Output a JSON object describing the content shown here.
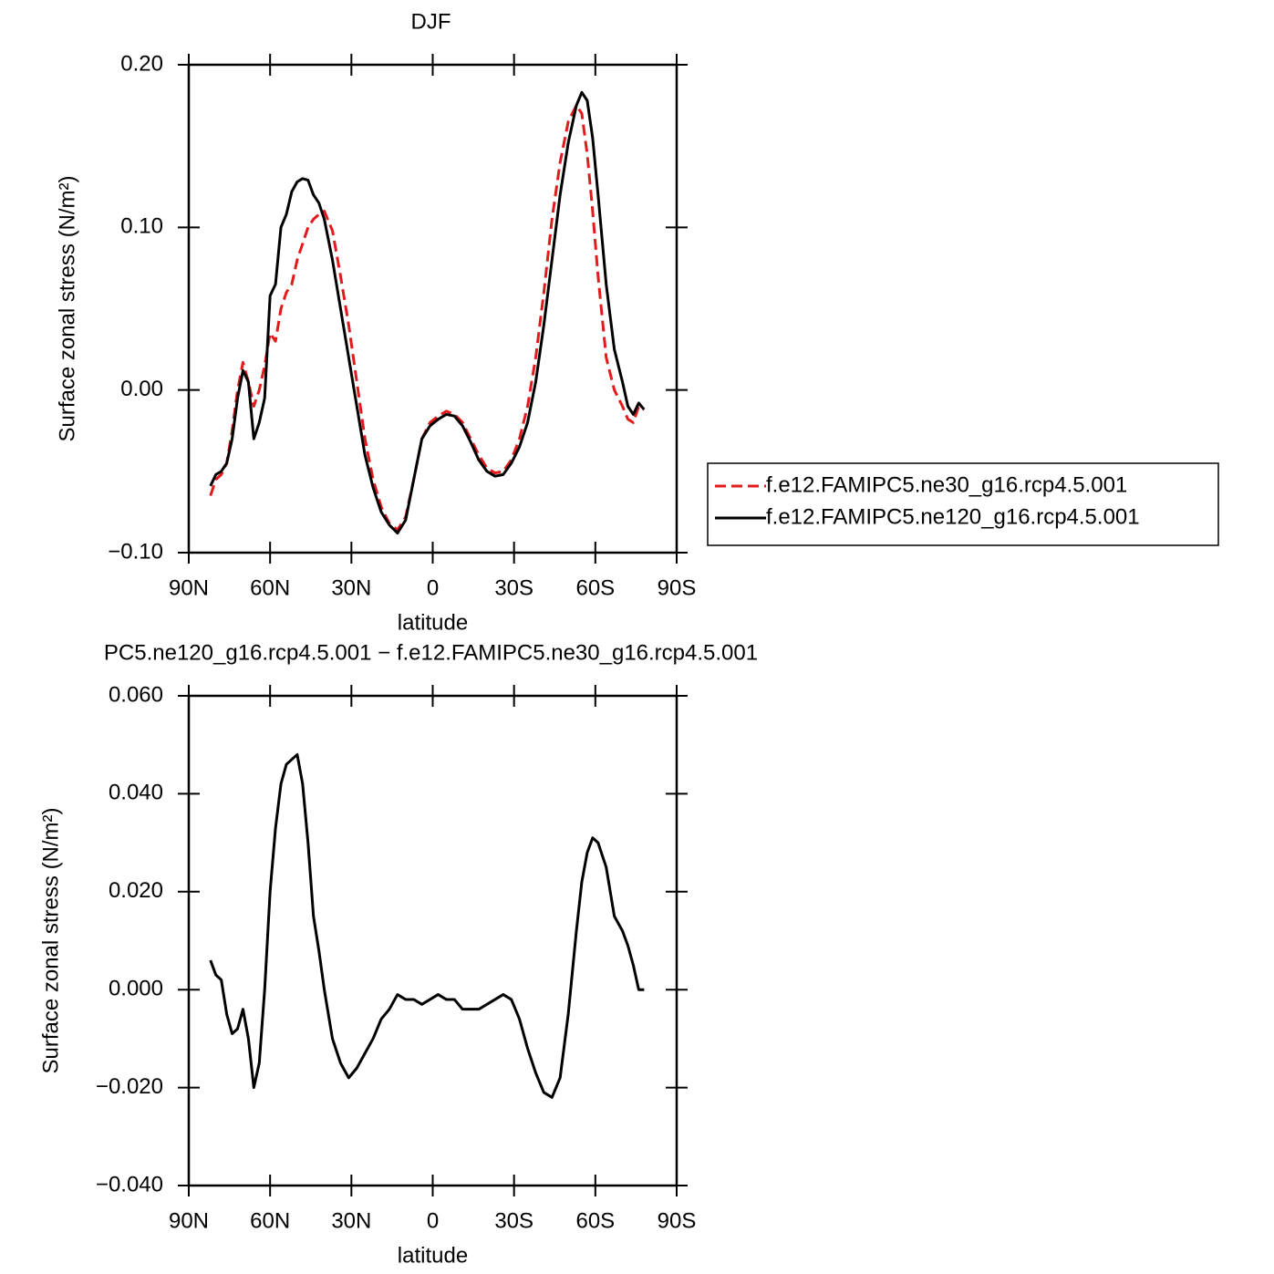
{
  "chart_data": [
    {
      "type": "line",
      "title": "DJF",
      "x_label": "latitude",
      "y_label": "Surface zonal stress (N/m²)",
      "x": [
        82,
        80,
        78,
        76,
        74,
        72,
        70,
        68,
        66,
        64,
        62,
        60,
        58,
        56,
        54,
        52,
        50,
        48,
        46,
        44,
        42,
        40,
        37,
        34,
        31,
        28,
        25,
        22,
        19,
        16,
        13,
        10,
        7,
        4,
        1,
        -2,
        -5,
        -8,
        -11,
        -14,
        -17,
        -20,
        -23,
        -26,
        -29,
        -32,
        -35,
        -38,
        -41,
        -44,
        -47,
        -50,
        -53,
        -55,
        -57,
        -59,
        -61,
        -64,
        -67,
        -70,
        -72,
        -74,
        -76,
        -78
      ],
      "xlim": [
        90,
        -90
      ],
      "xticks": [
        {
          "value": 90,
          "label": "90N"
        },
        {
          "value": 60,
          "label": "60N"
        },
        {
          "value": 30,
          "label": "30N"
        },
        0,
        {
          "value": -30,
          "label": "30S"
        },
        {
          "value": -60,
          "label": "60S"
        },
        {
          "value": -90,
          "label": "90S"
        }
      ],
      "ylim": [
        -0.1,
        0.2
      ],
      "yticks": [
        {
          "value": -0.1,
          "label": "−0.10"
        },
        {
          "value": 0,
          "label": "0.00"
        },
        {
          "value": 0.1,
          "label": "0.10"
        },
        {
          "value": 0.2,
          "label": "0.20"
        }
      ],
      "legend_position": "outside right",
      "series": [
        {
          "name": "f.e12.FAMIPC5.ne30_g16.rcp4.5.001",
          "color": "#e31a1c",
          "dash": true,
          "values": [
            -0.065,
            -0.055,
            -0.052,
            -0.045,
            -0.025,
            0.0,
            0.017,
            0.005,
            -0.01,
            0.0,
            0.015,
            0.035,
            0.03,
            0.05,
            0.06,
            0.065,
            0.08,
            0.09,
            0.1,
            0.105,
            0.108,
            0.11,
            0.098,
            0.07,
            0.04,
            0.005,
            -0.03,
            -0.055,
            -0.072,
            -0.082,
            -0.086,
            -0.078,
            -0.055,
            -0.03,
            -0.02,
            -0.016,
            -0.013,
            -0.015,
            -0.02,
            -0.03,
            -0.04,
            -0.048,
            -0.051,
            -0.05,
            -0.043,
            -0.03,
            -0.01,
            0.02,
            0.06,
            0.105,
            0.14,
            0.165,
            0.175,
            0.17,
            0.145,
            0.11,
            0.07,
            0.02,
            0.0,
            -0.01,
            -0.018,
            -0.02,
            -0.01,
            -0.012
          ]
        },
        {
          "name": "f.e12.FAMIPC5.ne120_g16.rcp4.5.001",
          "color": "#000000",
          "dash": false,
          "values": [
            -0.059,
            -0.052,
            -0.05,
            -0.045,
            -0.03,
            -0.005,
            0.012,
            0.005,
            -0.03,
            -0.02,
            -0.005,
            0.058,
            0.065,
            0.1,
            0.108,
            0.122,
            0.128,
            0.13,
            0.129,
            0.12,
            0.115,
            0.105,
            0.08,
            0.05,
            0.02,
            -0.01,
            -0.04,
            -0.06,
            -0.075,
            -0.083,
            -0.088,
            -0.08,
            -0.055,
            -0.03,
            -0.022,
            -0.018,
            -0.015,
            -0.016,
            -0.022,
            -0.032,
            -0.043,
            -0.05,
            -0.053,
            -0.052,
            -0.045,
            -0.035,
            -0.02,
            0.005,
            0.04,
            0.08,
            0.12,
            0.152,
            0.175,
            0.183,
            0.178,
            0.155,
            0.12,
            0.065,
            0.025,
            0.005,
            -0.01,
            -0.015,
            -0.008,
            -0.012
          ]
        }
      ]
    },
    {
      "type": "line",
      "title": "PC5.ne120_g16.rcp4.5.001 − f.e12.FAMIPC5.ne30_g16.rcp4.5.001",
      "x_label": "latitude",
      "y_label": "Surface zonal stress (N/m²)",
      "x": [
        82,
        80,
        78,
        76,
        74,
        72,
        70,
        68,
        66,
        64,
        62,
        60,
        58,
        56,
        54,
        52,
        50,
        48,
        46,
        44,
        42,
        40,
        37,
        34,
        31,
        28,
        25,
        22,
        19,
        16,
        13,
        10,
        7,
        4,
        1,
        -2,
        -5,
        -8,
        -11,
        -14,
        -17,
        -20,
        -23,
        -26,
        -29,
        -32,
        -35,
        -38,
        -41,
        -44,
        -47,
        -50,
        -53,
        -55,
        -57,
        -59,
        -61,
        -64,
        -67,
        -70,
        -72,
        -74,
        -76,
        -78
      ],
      "xlim": [
        90,
        -90
      ],
      "xticks": [
        {
          "value": 90,
          "label": "90N"
        },
        {
          "value": 60,
          "label": "60N"
        },
        {
          "value": 30,
          "label": "30N"
        },
        0,
        {
          "value": -30,
          "label": "30S"
        },
        {
          "value": -60,
          "label": "60S"
        },
        {
          "value": -90,
          "label": "90S"
        }
      ],
      "ylim": [
        -0.04,
        0.06
      ],
      "yticks": [
        {
          "value": -0.04,
          "label": "−0.040"
        },
        {
          "value": -0.02,
          "label": "−0.020"
        },
        {
          "value": 0,
          "label": "0.000"
        },
        {
          "value": 0.02,
          "label": "0.020"
        },
        {
          "value": 0.04,
          "label": "0.040"
        },
        {
          "value": 0.06,
          "label": "0.060"
        }
      ],
      "series": [
        {
          "color": "#000000",
          "dash": false,
          "values": [
            0.006,
            0.003,
            0.002,
            -0.005,
            -0.009,
            -0.008,
            -0.004,
            -0.01,
            -0.02,
            -0.015,
            0.0,
            0.02,
            0.033,
            0.042,
            0.046,
            0.047,
            0.048,
            0.042,
            0.03,
            0.015,
            0.008,
            0.0,
            -0.01,
            -0.015,
            -0.018,
            -0.016,
            -0.013,
            -0.01,
            -0.006,
            -0.004,
            -0.001,
            -0.002,
            -0.002,
            -0.003,
            -0.002,
            -0.001,
            -0.002,
            -0.002,
            -0.004,
            -0.004,
            -0.004,
            -0.003,
            -0.002,
            -0.001,
            -0.002,
            -0.006,
            -0.012,
            -0.017,
            -0.021,
            -0.022,
            -0.018,
            -0.005,
            0.012,
            0.022,
            0.028,
            0.031,
            0.03,
            0.025,
            0.015,
            0.012,
            0.009,
            0.005,
            0.0,
            0.0
          ]
        }
      ]
    }
  ]
}
